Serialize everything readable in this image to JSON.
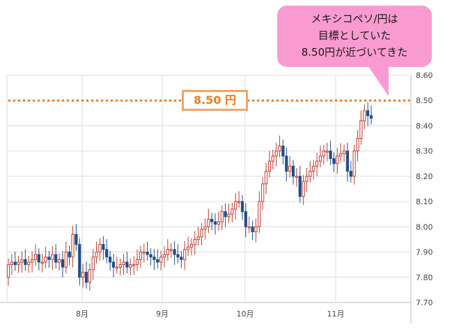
{
  "chart_data": {
    "type": "candlestick",
    "title": "",
    "xlabel": "",
    "ylabel": "",
    "ylim": [
      7.7,
      8.6
    ],
    "yticks": [
      "8.60",
      "8.50",
      "8.40",
      "8.30",
      "8.20",
      "8.10",
      "8.00",
      "7.90",
      "7.80",
      "7.70"
    ],
    "x_month_labels": [
      "8月",
      "9月",
      "10月",
      "11月"
    ],
    "target_level": 8.5,
    "target_label": "8.50 円",
    "annotation_lines": [
      "メキシコペソ/円は",
      "目標としていた",
      "8.50円が近づいてきた"
    ],
    "colors": {
      "up": "#c0392b",
      "down": "#1f4e8c",
      "target": "#f07c1a",
      "callout": "#f99bd0"
    },
    "series": [
      {
        "month_index": [
          0,
          8,
          9,
          10,
          11
        ],
        "open": [
          7.8,
          7.85,
          7.86,
          7.85,
          7.86,
          7.87,
          7.85,
          7.86,
          7.87,
          7.89,
          7.86,
          7.86,
          7.88,
          7.87,
          7.89,
          7.86,
          7.87,
          7.84,
          7.9,
          7.88,
          7.97,
          7.93,
          7.8,
          7.82,
          7.78,
          7.83,
          7.88,
          7.9,
          7.93,
          7.91,
          7.88,
          7.86,
          7.84,
          7.84,
          7.85,
          7.86,
          7.84,
          7.85,
          7.85,
          7.87,
          7.9,
          7.9,
          7.89,
          7.88,
          7.87,
          7.86,
          7.88,
          7.89,
          7.91,
          7.91,
          7.89,
          7.88,
          7.87,
          7.91,
          7.92,
          7.93,
          7.95,
          7.96,
          7.99,
          8.0,
          8.03,
          8.02,
          8.01,
          8.02,
          8.06,
          8.04,
          8.05,
          8.07,
          8.1,
          8.1,
          8.06,
          8.0,
          8.0,
          7.98,
          8.0,
          8.1,
          8.17,
          8.22,
          8.26,
          8.28,
          8.3,
          8.32,
          8.28,
          8.22,
          8.24,
          8.2,
          8.2,
          8.12,
          8.18,
          8.2,
          8.22,
          8.24,
          8.26,
          8.28,
          8.3,
          8.3,
          8.27,
          8.25,
          8.28,
          8.29,
          8.3,
          8.22,
          8.2,
          8.3,
          8.35,
          8.42,
          8.46,
          8.44
        ],
        "close": [
          7.85,
          7.86,
          7.85,
          7.86,
          7.87,
          7.85,
          7.86,
          7.87,
          7.89,
          7.86,
          7.86,
          7.88,
          7.87,
          7.89,
          7.86,
          7.87,
          7.84,
          7.9,
          7.88,
          7.97,
          7.93,
          7.8,
          7.82,
          7.78,
          7.83,
          7.88,
          7.9,
          7.93,
          7.91,
          7.88,
          7.86,
          7.84,
          7.84,
          7.85,
          7.86,
          7.84,
          7.85,
          7.85,
          7.87,
          7.9,
          7.9,
          7.89,
          7.88,
          7.87,
          7.86,
          7.88,
          7.89,
          7.91,
          7.91,
          7.89,
          7.88,
          7.87,
          7.91,
          7.92,
          7.93,
          7.95,
          7.96,
          7.99,
          8.0,
          8.03,
          8.02,
          8.01,
          8.02,
          8.06,
          8.04,
          8.05,
          8.07,
          8.1,
          8.1,
          8.06,
          8.0,
          8.0,
          7.98,
          8.0,
          8.1,
          8.17,
          8.22,
          8.26,
          8.28,
          8.3,
          8.32,
          8.28,
          8.22,
          8.24,
          8.2,
          8.2,
          8.12,
          8.18,
          8.2,
          8.22,
          8.24,
          8.26,
          8.28,
          8.3,
          8.3,
          8.27,
          8.25,
          8.28,
          8.29,
          8.3,
          8.22,
          8.2,
          8.3,
          8.35,
          8.42,
          8.46,
          8.44,
          8.43
        ]
      }
    ]
  }
}
